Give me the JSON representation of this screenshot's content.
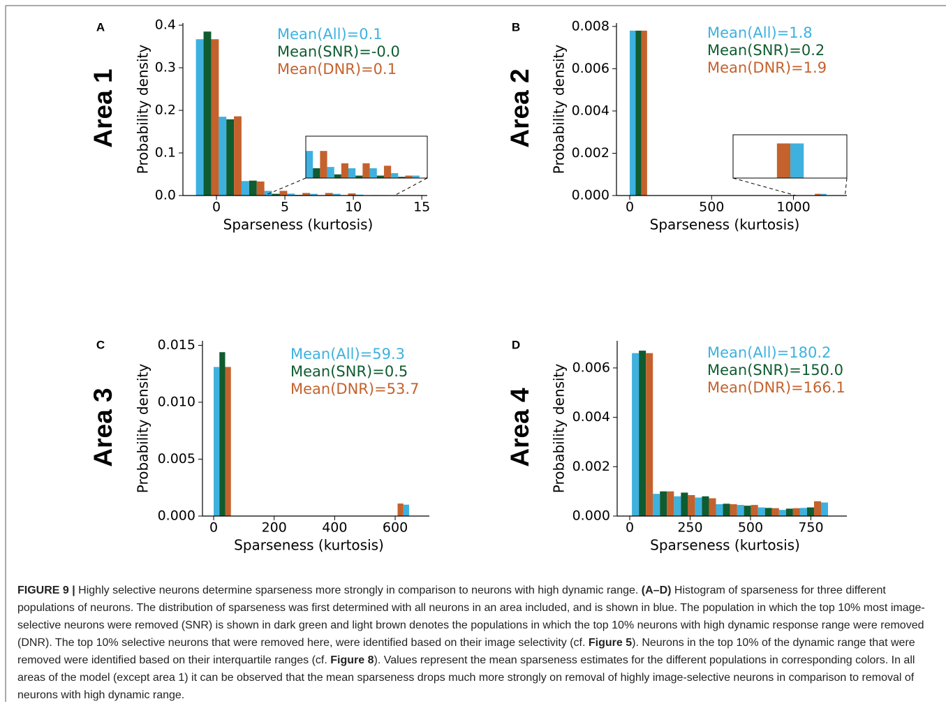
{
  "chart_data": [
    {
      "type": "histogram",
      "panel": "A",
      "row_label": "Area 1",
      "ylabel": "Probability density",
      "xlabel": "Sparseness (kurtosis)",
      "bins": [
        -1.5,
        0.17,
        1.83,
        3.5,
        5.17,
        6.83,
        8.5,
        10.17,
        11.83,
        13.5
      ],
      "series": [
        {
          "name": "All",
          "color": "#3eb1df",
          "values": [
            0.367,
            0.185,
            0.034,
            0.011,
            0.0045,
            0.004,
            0.004,
            0.002,
            0.001
          ]
        },
        {
          "name": "SNR",
          "color": "#0f5c31",
          "values": [
            0.385,
            0.179,
            0.035,
            0.004,
            0.0015,
            0.001,
            0.001,
            0.0005,
            0
          ]
        },
        {
          "name": "DNR",
          "color": "#c4622d",
          "values": [
            0.367,
            0.186,
            0.033,
            0.011,
            0.006,
            0.006,
            0.005,
            0.001,
            0.0005
          ]
        }
      ],
      "stats": [
        "Mean(All)=0.1",
        "Mean(SNR)=-0.0",
        "Mean(DNR)=0.1"
      ],
      "xlim": [
        -2.45,
        15.4
      ],
      "xticks": [
        0,
        5,
        10,
        15
      ],
      "ylim": [
        0,
        0.405
      ],
      "yticks": [
        {
          "value": 0,
          "label": "0.0"
        },
        0.1,
        0.2,
        0.3,
        0.4
      ],
      "inset": {
        "xlim": [
          3.5,
          13
        ],
        "ylim": [
          0,
          0.017
        ]
      }
    },
    {
      "type": "histogram",
      "panel": "B",
      "row_label": "Area 2",
      "ylabel": "Probability density",
      "xlabel": "Sparseness (kurtosis)",
      "bins": [
        0,
        106,
        212,
        318,
        424,
        530,
        636,
        742,
        848,
        954,
        1060,
        1166,
        1272
      ],
      "series": [
        {
          "name": "All",
          "color": "#3eb1df",
          "values": [
            0.0078,
            0,
            0,
            0,
            0,
            0,
            0,
            0,
            0,
            0,
            0,
            8e-05
          ]
        },
        {
          "name": "SNR",
          "color": "#0f5c31",
          "values": [
            0.0078,
            0,
            0,
            0,
            0,
            0,
            0,
            0,
            0,
            0,
            0,
            0
          ]
        },
        {
          "name": "DNR",
          "color": "#c4622d",
          "values": [
            0.0078,
            0,
            0,
            0,
            0,
            0,
            0,
            0,
            0,
            0,
            8e-05,
            0
          ]
        }
      ],
      "stats": [
        "Mean(All)=1.8",
        "Mean(SNR)=0.2",
        "Mean(DNR)=1.9"
      ],
      "xlim": [
        -81,
        1326
      ],
      "xticks": [
        0,
        500,
        1000
      ],
      "ylim": [
        0,
        0.00816
      ],
      "yticks": [
        {
          "value": 0,
          "label": "0.000"
        },
        {
          "value": 0.002,
          "label": "0.002"
        },
        {
          "value": 0.004,
          "label": "0.004"
        },
        {
          "value": 0.006,
          "label": "0.006"
        },
        {
          "value": 0.008,
          "label": "0.008"
        }
      ],
      "inset": {
        "xlim": [
          1015,
          1315
        ],
        "ylim": [
          0,
          0.0001
        ]
      }
    },
    {
      "type": "histogram",
      "panel": "C",
      "row_label": "Area 3",
      "ylabel": "Probability density",
      "xlabel": "Sparseness (kurtosis)",
      "bins": [
        0,
        57,
        114,
        171,
        228,
        285,
        342,
        399,
        456,
        513,
        570,
        627,
        684
      ],
      "series": [
        {
          "name": "All",
          "color": "#3eb1df",
          "values": [
            0.0131,
            0,
            0,
            0,
            0,
            1e-05,
            2e-05,
            2e-05,
            2e-05,
            2e-05,
            0,
            0.001
          ]
        },
        {
          "name": "SNR",
          "color": "#0f5c31",
          "values": [
            0.0144,
            0,
            0,
            0,
            0,
            0,
            0,
            0,
            0,
            0,
            0,
            0
          ]
        },
        {
          "name": "DNR",
          "color": "#c4622d",
          "values": [
            0.0131,
            0,
            0,
            0,
            0,
            2e-05,
            2e-05,
            2e-05,
            2e-05,
            2e-05,
            0.0011,
            0
          ]
        }
      ],
      "stats": [
        "Mean(All)=59.3",
        "Mean(SNR)=0.5",
        "Mean(DNR)=53.7"
      ],
      "xlim": [
        -37,
        713
      ],
      "xticks": [
        0,
        200,
        400,
        600
      ],
      "ylim": [
        0,
        0.0154
      ],
      "yticks": [
        {
          "value": 0,
          "label": "0.000"
        },
        {
          "value": 0.005,
          "label": "0.005"
        },
        {
          "value": 0.01,
          "label": "0.010"
        },
        {
          "value": 0.015,
          "label": "0.015"
        }
      ]
    },
    {
      "type": "histogram",
      "panel": "D",
      "row_label": "Area 4",
      "ylabel": "Probability density",
      "xlabel": "Sparseness (kurtosis)",
      "bins": [
        9,
        96,
        183,
        270,
        357,
        444,
        531,
        618,
        705,
        792,
        879
      ],
      "series": [
        {
          "name": "All",
          "color": "#3eb1df",
          "values": [
            0.0066,
            0.0009,
            0.0008,
            0.00075,
            0.00048,
            0.00045,
            0.00035,
            0.00025,
            0.00033,
            0.00055
          ]
        },
        {
          "name": "SNR",
          "color": "#0f5c31",
          "values": [
            0.0067,
            0.001,
            0.00095,
            0.0008,
            0.0005,
            0.00042,
            0.00033,
            0.0003,
            0.00035,
            0
          ]
        },
        {
          "name": "DNR",
          "color": "#c4622d",
          "values": [
            0.0066,
            0.001,
            0.00085,
            0.00072,
            0.00048,
            0.00045,
            0.00032,
            0.00032,
            0.0006,
            0
          ]
        }
      ],
      "stats": [
        "Mean(All)=180.2",
        "Mean(SNR)=150.0",
        "Mean(DNR)=166.1"
      ],
      "xlim": [
        -52,
        899
      ],
      "xticks": [
        0,
        250,
        500,
        750
      ],
      "ylim": [
        0,
        0.0071
      ],
      "yticks": [
        {
          "value": 0,
          "label": "0.000"
        },
        {
          "value": 0.002,
          "label": "0.002"
        },
        {
          "value": 0.004,
          "label": "0.004"
        },
        {
          "value": 0.006,
          "label": "0.006"
        }
      ]
    }
  ],
  "caption": [
    {
      "text": "FIGURE 9 |",
      "bold": true
    },
    {
      "text": " Highly selective neurons determine sparseness more strongly in comparison to neurons with high dynamic range. "
    },
    {
      "text": "(A–D)",
      "bold": true
    },
    {
      "text": " Histogram of sparseness for three different populations of neurons. The distribution of sparseness was first determined with all neurons in an area included, and is shown in blue. The population in which the top 10% most image-selective neurons were removed (SNR) is shown in dark green and light brown denotes the populations in which the top 10% neurons with high dynamic response range were removed (DNR). The top 10% selective neurons that were removed here, were identified based on their image selectivity (cf. "
    },
    {
      "text": "Figure 5",
      "bold": true
    },
    {
      "text": "). Neurons in the top 10% of the dynamic range that were removed were identified based on their interquartile ranges (cf. "
    },
    {
      "text": "Figure 8",
      "bold": true
    },
    {
      "text": "). Values represent the mean sparseness estimates for the different populations in corresponding colors. In all areas of the model (except area 1) it can be observed that the mean sparseness drops much more strongly on removal of highly image-selective neurons in comparison to removal of neurons with high dynamic range."
    }
  ]
}
